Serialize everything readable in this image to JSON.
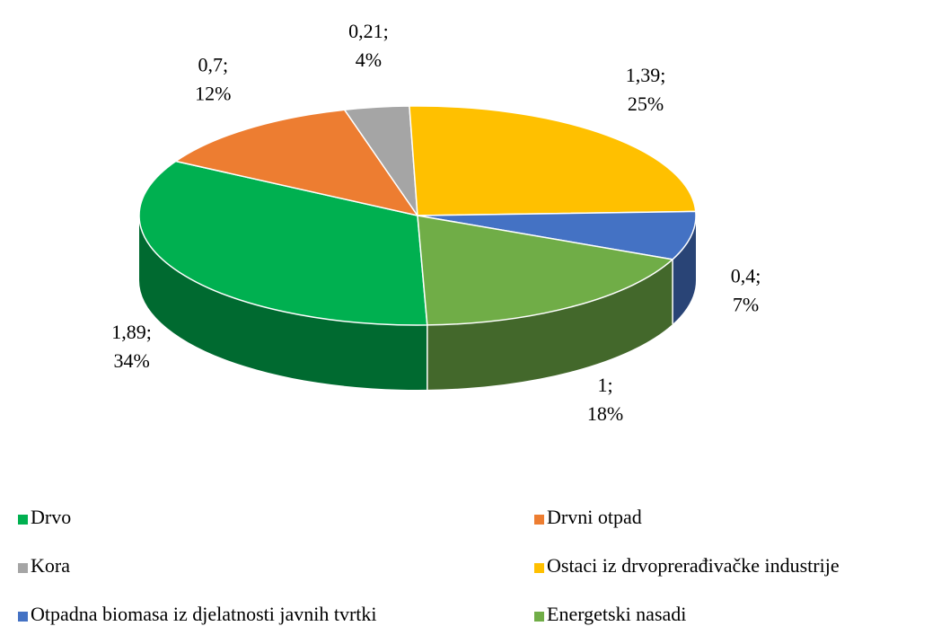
{
  "chart_data": {
    "type": "pie",
    "categories": [
      "Drvo",
      "Drvni otpad",
      "Kora",
      "Ostaci iz drvoprerađivačke industrije",
      "Otpadna biomasa iz djelatnosti javnih tvrtki",
      "Energetski nasadi"
    ],
    "values": [
      1.89,
      0.7,
      0.21,
      1.39,
      0.4,
      1
    ],
    "value_labels": [
      "1,89;",
      "0,7;",
      "0,21;",
      "1,39;",
      "0,4;",
      "1;"
    ],
    "percent_labels": [
      "34%",
      "12%",
      "4%",
      "25%",
      "7%",
      "18%"
    ],
    "colors": [
      "#00b050",
      "#ed7d31",
      "#a5a5a5",
      "#ffc000",
      "#4472c4",
      "#70ad47"
    ],
    "legend": "bottom"
  }
}
